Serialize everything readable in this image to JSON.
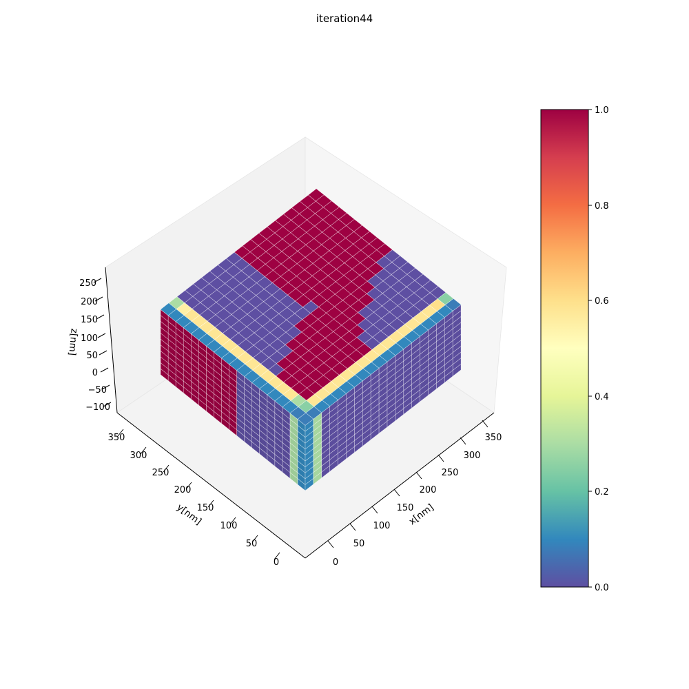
{
  "chart_data": {
    "type": "heatmap",
    "title": "iteration44",
    "xlabel": "x[nm]",
    "ylabel": "y[nm]",
    "zlabel": "z[nm]",
    "x_ticks": [
      "0",
      "50",
      "100",
      "150",
      "200",
      "250",
      "300",
      "350"
    ],
    "y_ticks": [
      "0",
      "50",
      "100",
      "150",
      "200",
      "250",
      "300",
      "350"
    ],
    "z_ticks": [
      "−100",
      "−50",
      "0",
      "50",
      "100",
      "150",
      "200",
      "250"
    ],
    "colorbar": {
      "colormap": "Spectral_r",
      "ticks": [
        "0.0",
        "0.2",
        "0.4",
        "0.6",
        "0.8",
        "1.0"
      ],
      "range": [
        0.0,
        1.0
      ],
      "colors": [
        "#5e4fa2",
        "#3288bd",
        "#66c2a5",
        "#abdda4",
        "#e6f598",
        "#ffffbf",
        "#fee08b",
        "#fdae61",
        "#f46d43",
        "#d53e4f",
        "#9e0142"
      ]
    },
    "grid_size": {
      "x": 19,
      "y": 19,
      "z": 11
    },
    "top_surface_values": [
      [
        1.0,
        1.0,
        1.0,
        1.0,
        1.0,
        1.0,
        1.0,
        1.0,
        1.0,
        1.0,
        0.0,
        0.0,
        0.0,
        0.0,
        0.0,
        0.0,
        0.0,
        0.25,
        0.08
      ],
      [
        1.0,
        1.0,
        1.0,
        1.0,
        1.0,
        1.0,
        1.0,
        1.0,
        1.0,
        1.0,
        0.0,
        0.0,
        0.0,
        0.0,
        0.0,
        0.0,
        0.0,
        0.6,
        0.1
      ],
      [
        1.0,
        1.0,
        1.0,
        1.0,
        1.0,
        1.0,
        1.0,
        1.0,
        1.0,
        1.0,
        1.0,
        0.0,
        0.0,
        0.0,
        0.0,
        0.0,
        0.0,
        0.58,
        0.1
      ],
      [
        1.0,
        1.0,
        1.0,
        1.0,
        1.0,
        1.0,
        1.0,
        1.0,
        1.0,
        1.0,
        1.0,
        0.0,
        0.0,
        0.0,
        0.0,
        0.0,
        0.0,
        0.58,
        0.1
      ],
      [
        1.0,
        1.0,
        1.0,
        1.0,
        1.0,
        1.0,
        1.0,
        1.0,
        1.0,
        1.0,
        1.0,
        1.0,
        0.0,
        0.0,
        0.0,
        0.0,
        0.0,
        0.58,
        0.1
      ],
      [
        1.0,
        1.0,
        1.0,
        1.0,
        1.0,
        1.0,
        1.0,
        1.0,
        1.0,
        1.0,
        1.0,
        1.0,
        1.0,
        0.0,
        0.0,
        0.0,
        0.0,
        0.58,
        0.1
      ],
      [
        1.0,
        1.0,
        1.0,
        1.0,
        1.0,
        1.0,
        1.0,
        1.0,
        1.0,
        1.0,
        1.0,
        1.0,
        1.0,
        0.0,
        0.0,
        0.0,
        0.0,
        0.58,
        0.1
      ],
      [
        1.0,
        1.0,
        1.0,
        1.0,
        1.0,
        1.0,
        1.0,
        1.0,
        1.0,
        1.0,
        1.0,
        1.0,
        1.0,
        1.0,
        0.0,
        0.0,
        0.0,
        0.58,
        0.1
      ],
      [
        1.0,
        1.0,
        1.0,
        1.0,
        1.0,
        1.0,
        1.0,
        1.0,
        1.0,
        1.0,
        1.0,
        1.0,
        1.0,
        1.0,
        1.0,
        0.0,
        0.0,
        0.58,
        0.1
      ],
      [
        1.0,
        1.0,
        1.0,
        1.0,
        1.0,
        1.0,
        1.0,
        1.0,
        1.0,
        0.0,
        1.0,
        1.0,
        1.0,
        1.0,
        1.0,
        1.0,
        1.0,
        0.58,
        0.1
      ],
      [
        0.0,
        0.0,
        0.0,
        0.0,
        0.0,
        0.0,
        0.0,
        0.0,
        0.0,
        0.0,
        1.0,
        1.0,
        1.0,
        1.0,
        1.0,
        1.0,
        1.0,
        0.58,
        0.1
      ],
      [
        0.0,
        0.0,
        0.0,
        0.0,
        0.0,
        0.0,
        0.0,
        0.0,
        0.0,
        0.0,
        1.0,
        1.0,
        1.0,
        1.0,
        1.0,
        1.0,
        1.0,
        0.58,
        0.1
      ],
      [
        0.0,
        0.0,
        0.0,
        0.0,
        0.0,
        0.0,
        0.0,
        0.0,
        0.0,
        0.0,
        0.0,
        1.0,
        1.0,
        1.0,
        1.0,
        1.0,
        1.0,
        0.58,
        0.1
      ],
      [
        0.0,
        0.0,
        0.0,
        0.0,
        0.0,
        0.0,
        0.0,
        0.0,
        0.0,
        0.0,
        0.0,
        1.0,
        1.0,
        1.0,
        1.0,
        1.0,
        1.0,
        0.58,
        0.1
      ],
      [
        0.0,
        0.0,
        0.0,
        0.0,
        0.0,
        0.0,
        0.0,
        0.0,
        0.0,
        0.0,
        0.0,
        0.0,
        1.0,
        1.0,
        1.0,
        1.0,
        1.0,
        0.58,
        0.1
      ],
      [
        0.0,
        0.0,
        0.0,
        0.0,
        0.0,
        0.0,
        0.0,
        0.0,
        0.0,
        0.0,
        0.0,
        0.0,
        1.0,
        1.0,
        1.0,
        1.0,
        1.0,
        0.58,
        0.1
      ],
      [
        0.0,
        0.0,
        0.0,
        0.0,
        0.0,
        0.0,
        0.0,
        0.0,
        0.0,
        0.0,
        0.0,
        0.0,
        0.0,
        1.0,
        1.0,
        1.0,
        1.0,
        0.58,
        0.1
      ],
      [
        0.3,
        0.55,
        0.58,
        0.58,
        0.58,
        0.58,
        0.58,
        0.58,
        0.58,
        0.58,
        0.58,
        0.58,
        0.58,
        0.58,
        0.58,
        0.58,
        0.3,
        0.25,
        0.08
      ],
      [
        0.1,
        0.1,
        0.1,
        0.1,
        0.1,
        0.1,
        0.1,
        0.1,
        0.1,
        0.1,
        0.1,
        0.1,
        0.1,
        0.1,
        0.1,
        0.1,
        0.1,
        0.08,
        0.08
      ]
    ]
  }
}
